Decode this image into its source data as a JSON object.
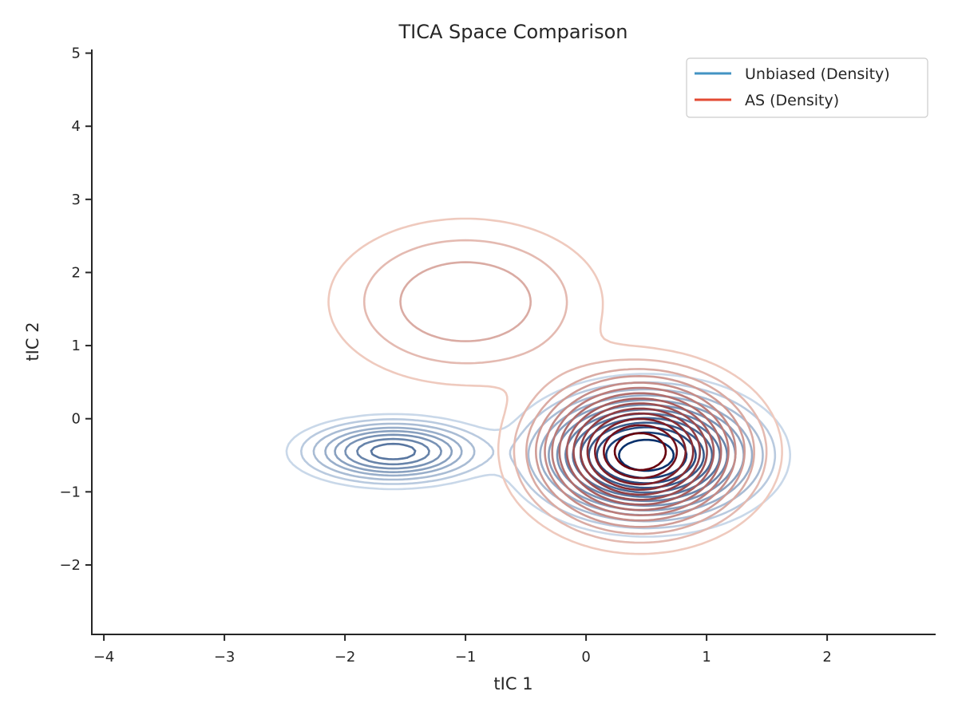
{
  "chart_data": {
    "type": "contour",
    "title": "TICA Space Comparison",
    "xlabel": "tIC 1",
    "ylabel": "tIC 2",
    "xlim": [
      -4.1,
      2.9
    ],
    "ylim": [
      -2.95,
      5.05
    ],
    "xticks": [
      -4,
      -3,
      -2,
      -1,
      0,
      1,
      2
    ],
    "yticks": [
      -2,
      -1,
      0,
      1,
      2,
      3,
      4,
      5
    ],
    "grid": false,
    "legend": {
      "position": "top-right",
      "entries": [
        {
          "label": "Unbiased (Density)",
          "color": "#4393c3"
        },
        {
          "label": "AS (Density)",
          "color": "#e34a33"
        }
      ]
    },
    "series": [
      {
        "name": "Unbiased (Density)",
        "colormap": "Blues",
        "light_color": "#deebf7",
        "dark_color": "#08306b",
        "modes": [
          {
            "center": [
              0.5,
              -0.5
            ],
            "sx": 0.45,
            "sy": 0.42,
            "weight": 1.0
          },
          {
            "center": [
              -1.6,
              -0.45
            ],
            "sx": 0.38,
            "sy": 0.22,
            "weight": 0.45
          }
        ],
        "levels": [
          0.03,
          0.06,
          0.1,
          0.15,
          0.2,
          0.26,
          0.33,
          0.4,
          0.48,
          0.57,
          0.66,
          0.76,
          0.88
        ]
      },
      {
        "name": "AS (Density)",
        "colormap": "Reds",
        "light_color": "#fee0d2",
        "dark_color": "#67000d",
        "modes": [
          {
            "center": [
              0.45,
              -0.45
            ],
            "sx": 0.42,
            "sy": 0.5,
            "weight": 1.0
          },
          {
            "center": [
              -1.0,
              1.6
            ],
            "sx": 0.6,
            "sy": 0.6,
            "weight": 0.12
          }
        ],
        "levels": [
          0.02,
          0.045,
          0.08,
          0.12,
          0.17,
          0.22,
          0.28,
          0.35,
          0.42,
          0.5,
          0.58,
          0.67,
          0.77,
          0.88
        ]
      }
    ]
  }
}
